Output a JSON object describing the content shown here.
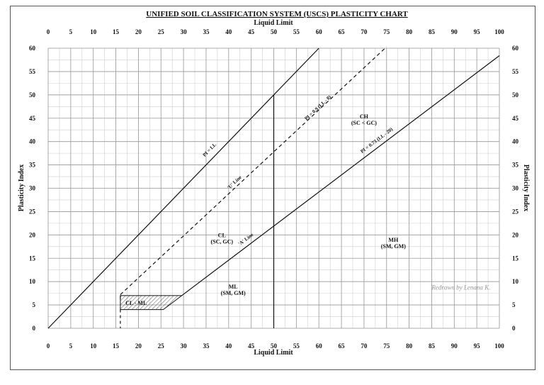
{
  "chart_data": {
    "type": "line",
    "title": "UNIFIED SOIL CLASSIFICATION SYSTEM (USCS) PLASTICITY CHART",
    "xlabel": "Liquid Limit",
    "ylabel": "Plasticity Index",
    "xlim": [
      0,
      100
    ],
    "ylim": [
      0,
      60
    ],
    "x_ticks": [
      0,
      5,
      10,
      15,
      20,
      25,
      30,
      35,
      40,
      45,
      50,
      55,
      60,
      65,
      70,
      75,
      80,
      85,
      90,
      95,
      100
    ],
    "y_ticks": [
      0,
      5,
      10,
      15,
      20,
      25,
      30,
      35,
      40,
      45,
      50,
      55,
      60
    ],
    "grid": true,
    "series": [
      {
        "name": "PI = LL",
        "style": "solid",
        "x": [
          0,
          60
        ],
        "y": [
          0,
          60
        ]
      },
      {
        "name": "PI = 0.9 (LL - 8)",
        "style": "dashed",
        "x": [
          16,
          75
        ],
        "y": [
          7.2,
          60.3
        ]
      },
      {
        "name": "PI = 0.73 (LL - 20)",
        "style": "solid",
        "x": [
          29.6,
          100
        ],
        "y": [
          7,
          58.4
        ]
      },
      {
        "name": "LL = 50",
        "style": "solid",
        "x": [
          50,
          50
        ],
        "y": [
          0,
          50
        ]
      }
    ],
    "cl_ml_zone": {
      "label": "CL - ML",
      "points": [
        [
          16,
          4
        ],
        [
          25.5,
          4
        ],
        [
          29.6,
          7
        ],
        [
          16,
          7
        ]
      ]
    },
    "annotations": [
      {
        "text": "PI = LL",
        "x": 36,
        "y": 38,
        "angle_of": "PI = LL"
      },
      {
        "text": "PI = 0.9 (LL - 8)",
        "x": 60,
        "y": 47,
        "angle_of": "PI = 0.9 (LL - 8)"
      },
      {
        "text": "'U' Line",
        "x": 41.5,
        "y": 31,
        "angle_of": "PI = 0.9 (LL - 8)"
      },
      {
        "text": "PI = 0.73 (LL - 20)",
        "x": 73,
        "y": 40,
        "angle_of": "PI = 0.73 (LL - 20)"
      },
      {
        "text": "'A' Line",
        "x": 44,
        "y": 18.8,
        "angle_of": "PI = 0.73 (LL - 20)"
      }
    ],
    "zones": [
      {
        "lines": [
          "CH",
          "(SC < GC)"
        ],
        "x": 70,
        "y": 45
      },
      {
        "lines": [
          "CL",
          "(SC, GC)"
        ],
        "x": 38.5,
        "y": 19.5
      },
      {
        "lines": [
          "MH",
          "(SM, GM)"
        ],
        "x": 76.5,
        "y": 18.5
      },
      {
        "lines": [
          "ML",
          "(SM, GM)"
        ],
        "x": 41,
        "y": 8.5
      }
    ],
    "credit": "Redrawn by Lenana K."
  }
}
